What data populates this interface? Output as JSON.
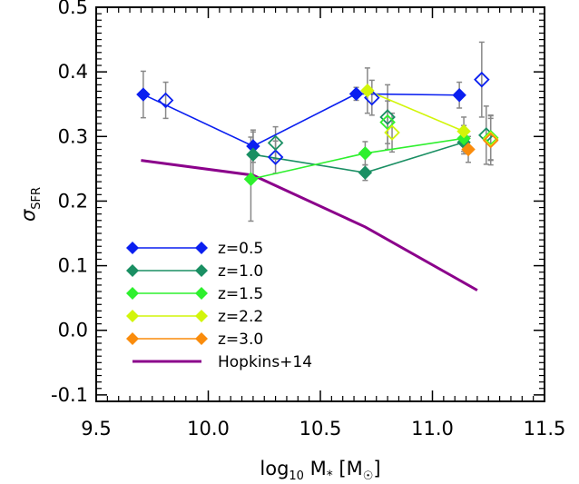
{
  "chart_data": {
    "type": "scatter",
    "xlabel": {
      "main": "log",
      "sub": "10",
      "rest": " M",
      "star": "*",
      "unit": " [M",
      "sun": "☉",
      "close": "]"
    },
    "ylabel": {
      "main": "σ",
      "sub": "SFR"
    },
    "xlim": [
      9.5,
      11.5
    ],
    "ylim": [
      -0.11,
      0.5
    ],
    "xticks": [
      "9.5",
      "10.0",
      "10.5",
      "11.0",
      "11.5"
    ],
    "xtick_values": [
      9.5,
      10.0,
      10.5,
      11.0,
      11.5
    ],
    "yticks": [
      "-0.1",
      "0.0",
      "0.1",
      "0.2",
      "0.3",
      "0.4",
      "0.5"
    ],
    "ytick_values": [
      -0.1,
      0.0,
      0.1,
      0.2,
      0.3,
      0.4,
      0.5
    ],
    "legend_position": "lower-left",
    "series": [
      {
        "name": "z=0.5",
        "color": "#0a1ff0",
        "filled": [
          [
            9.71,
            0.365,
            0.036
          ],
          [
            10.2,
            0.285,
            0.025
          ],
          [
            10.66,
            0.366,
            0.01
          ],
          [
            11.12,
            0.364,
            0.02
          ]
        ],
        "open": [
          [
            9.81,
            0.356,
            0.028
          ],
          [
            10.3,
            0.268,
            0.025
          ],
          [
            10.73,
            0.36,
            0.027
          ],
          [
            11.22,
            0.388,
            0.058
          ]
        ]
      },
      {
        "name": "z=1.0",
        "color": "#1a8f63",
        "filled": [
          [
            10.2,
            0.272,
            0.035
          ],
          [
            10.7,
            0.244,
            0.012
          ],
          [
            11.14,
            0.291,
            0.018
          ]
        ],
        "open": [
          [
            10.3,
            0.29,
            0.025
          ],
          [
            10.8,
            0.33,
            0.05
          ],
          [
            11.24,
            0.302,
            0.045
          ]
        ]
      },
      {
        "name": "z=1.5",
        "color": "#2ef02e",
        "filled": [
          [
            10.19,
            0.234,
            0.065
          ],
          [
            10.7,
            0.274,
            0.018
          ],
          [
            11.14,
            0.297,
            0.02
          ]
        ],
        "open": [
          [
            10.8,
            0.322,
            0.033
          ],
          [
            11.26,
            0.298,
            0.035
          ]
        ]
      },
      {
        "name": "z=2.2",
        "color": "#d2f50a",
        "filled": [
          [
            10.71,
            0.371,
            0.035
          ],
          [
            11.14,
            0.308,
            0.022
          ]
        ],
        "open": [
          [
            10.82,
            0.306,
            0.03
          ],
          [
            11.26,
            0.296,
            0.032
          ]
        ]
      },
      {
        "name": "z=3.0",
        "color": "#fa8c0c",
        "filled": [
          [
            11.16,
            0.28,
            0.02
          ]
        ],
        "open": [
          [
            11.26,
            0.294,
            0.038
          ]
        ]
      }
    ],
    "model_line": {
      "name": "Hopkins+14",
      "color": "#8b008b",
      "x": [
        9.7,
        10.2,
        10.7,
        11.2
      ],
      "y": [
        0.263,
        0.24,
        0.16,
        0.062
      ]
    }
  }
}
